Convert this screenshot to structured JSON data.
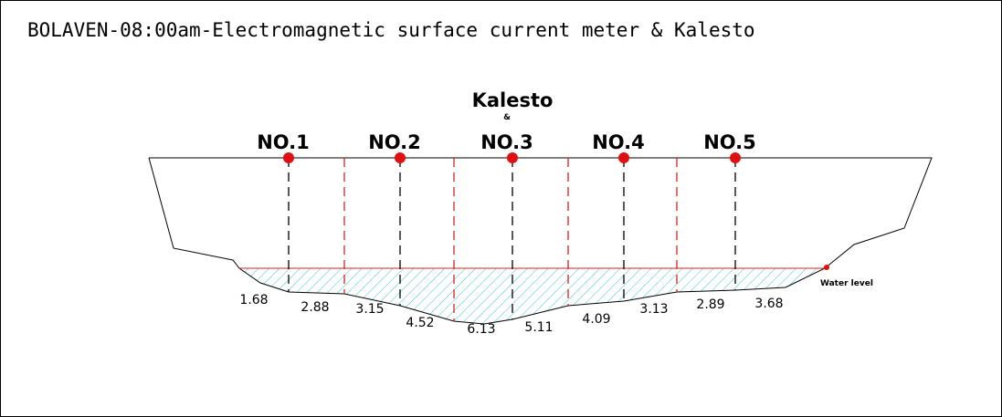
{
  "title": "BOLAVEN-08:00am-Electromagnetic surface current meter & Kalesto",
  "kalesto": "Kalesto",
  "ampersand": "&",
  "stations": [
    "NO.1",
    "NO.2",
    "NO.3",
    "NO.4",
    "NO.5"
  ],
  "depths": [
    "1.68",
    "2.88",
    "3.15",
    "4.52",
    "6.13",
    "5.11",
    "4.09",
    "3.13",
    "2.89",
    "3.68"
  ],
  "water_level": "Water level"
}
